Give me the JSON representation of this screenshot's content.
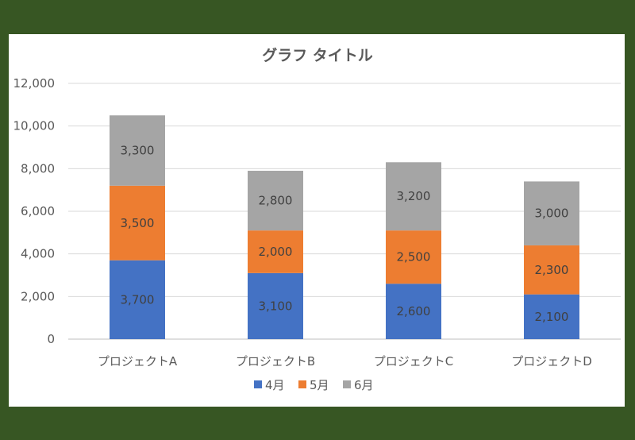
{
  "chart_data": {
    "type": "bar",
    "stacked": true,
    "title": "グラフ タイトル",
    "categories": [
      "プロジェクトA",
      "プロジェクトB",
      "プロジェクトC",
      "プロジェクトD"
    ],
    "series": [
      {
        "name": "4月",
        "color": "#4472C4",
        "values": [
          3700,
          3100,
          2600,
          2100
        ]
      },
      {
        "name": "5月",
        "color": "#ED7D31",
        "values": [
          3500,
          2000,
          2500,
          2300
        ]
      },
      {
        "name": "6月",
        "color": "#A5A5A5",
        "values": [
          3300,
          2800,
          3200,
          3000
        ]
      }
    ],
    "yticks": [
      "0",
      "2,000",
      "4,000",
      "6,000",
      "8,000",
      "10,000",
      "12,000"
    ],
    "ylim": [
      0,
      12000
    ],
    "grid": true,
    "legend": "bottom",
    "data_labels": true
  }
}
